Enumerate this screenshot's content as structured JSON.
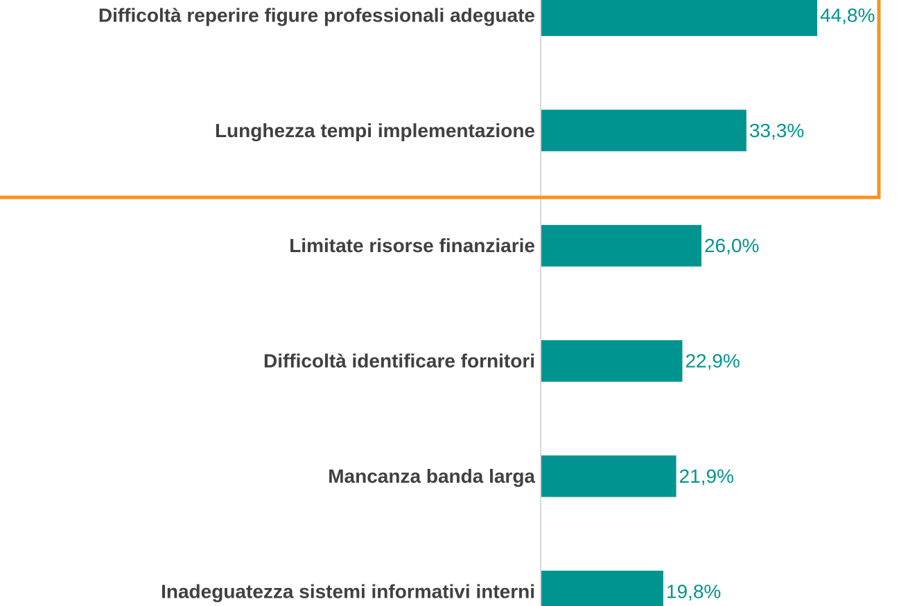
{
  "chart_data": {
    "type": "bar",
    "orientation": "horizontal",
    "categories": [
      "Difficoltà reperire figure professionali adeguate",
      "Lunghezza tempi implementazione",
      "Limitate risorse finanziarie",
      "Difficoltà identificare fornitori",
      "Mancanza banda larga",
      "Inadeguatezza sistemi informativi interni"
    ],
    "values": [
      44.8,
      33.3,
      26.0,
      22.9,
      21.9,
      19.8
    ],
    "value_labels": [
      "44,8%",
      "33,3%",
      "26,0%",
      "22,9%",
      "21,9%",
      "19,8%"
    ],
    "color": "#009490"
  }
}
